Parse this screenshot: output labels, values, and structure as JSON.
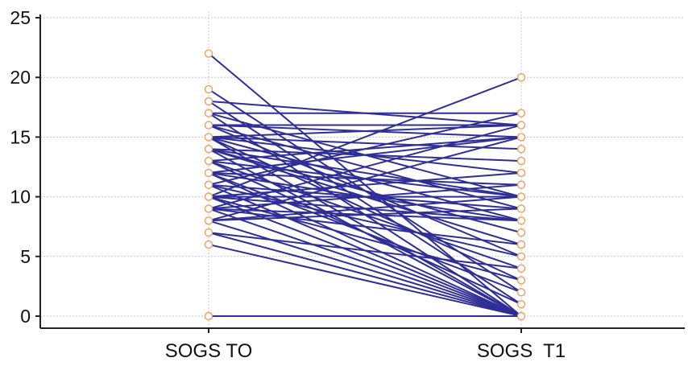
{
  "chart_data": {
    "type": "line",
    "title": "",
    "xlabel": "",
    "ylabel": "",
    "categories": [
      "SOGS TO",
      "SOGS  T1"
    ],
    "ylim": [
      -1,
      26
    ],
    "yticks": [
      0,
      5,
      10,
      15,
      20,
      25
    ],
    "grid": true,
    "legend": "none",
    "series_color": "#2e2e96",
    "marker_stroke": "#e8a060",
    "marker_fill": "#ffffff",
    "pairs": [
      [
        22,
        0
      ],
      [
        19,
        2
      ],
      [
        18,
        1
      ],
      [
        18,
        16
      ],
      [
        17,
        10
      ],
      [
        17,
        0
      ],
      [
        17,
        17
      ],
      [
        16,
        16
      ],
      [
        16,
        5
      ],
      [
        16,
        9
      ],
      [
        16,
        15
      ],
      [
        15,
        0
      ],
      [
        15,
        8
      ],
      [
        15,
        12
      ],
      [
        15,
        3
      ],
      [
        15,
        14
      ],
      [
        15,
        16
      ],
      [
        14,
        0
      ],
      [
        14,
        10
      ],
      [
        14,
        7
      ],
      [
        14,
        13
      ],
      [
        14,
        6
      ],
      [
        13,
        1
      ],
      [
        13,
        10
      ],
      [
        13,
        15
      ],
      [
        13,
        4
      ],
      [
        12,
        0
      ],
      [
        12,
        8
      ],
      [
        12,
        11
      ],
      [
        12,
        2
      ],
      [
        12,
        15
      ],
      [
        11,
        0
      ],
      [
        11,
        9
      ],
      [
        11,
        17
      ],
      [
        11,
        5
      ],
      [
        10,
        20
      ],
      [
        10,
        0
      ],
      [
        10,
        10
      ],
      [
        10,
        8
      ],
      [
        10,
        3
      ],
      [
        10,
        12
      ],
      [
        9,
        0
      ],
      [
        9,
        8
      ],
      [
        9,
        16
      ],
      [
        9,
        11
      ],
      [
        9,
        6
      ],
      [
        8,
        0
      ],
      [
        8,
        10
      ],
      [
        8,
        15
      ],
      [
        8,
        9
      ],
      [
        7,
        0
      ],
      [
        7,
        4
      ],
      [
        6,
        0
      ],
      [
        0,
        0
      ]
    ]
  }
}
